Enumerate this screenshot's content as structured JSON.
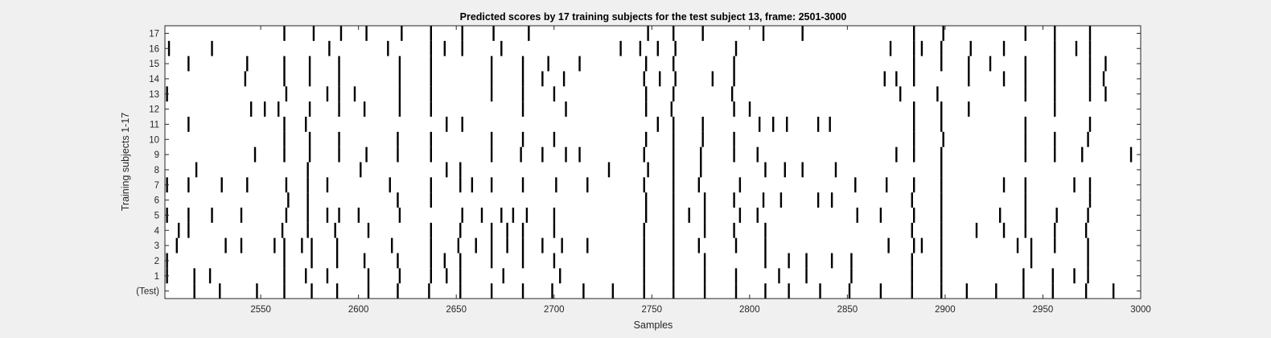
{
  "chart_data": {
    "type": "raster",
    "title": "Predicted scores by 17 training subjects for the test subject 13, frame: 2501-3000",
    "xlabel": "Samples",
    "ylabel": "Training subjects 1-17",
    "xlim": [
      2501,
      3000
    ],
    "xticks": [
      2550,
      2600,
      2650,
      2700,
      2750,
      2800,
      2850,
      2900,
      2950,
      3000
    ],
    "row_labels": [
      "(Test)",
      "1",
      "2",
      "3",
      "4",
      "5",
      "6",
      "7",
      "8",
      "9",
      "10",
      "11",
      "12",
      "13",
      "14",
      "15",
      "16",
      "17"
    ],
    "grid": false,
    "colors": {
      "background": "#f0f0f0",
      "plot_area": "#ffffff",
      "event": "#000000"
    },
    "rows": [
      {
        "label": "(Test)",
        "events": [
          2516,
          2529,
          2548,
          2562,
          2576,
          2589,
          2605,
          2620,
          2636,
          2652,
          2668,
          2684,
          2699,
          2715,
          2730,
          2746,
          2761,
          2777,
          2793,
          2808,
          2820,
          2836,
          2851,
          2867,
          2883,
          2898,
          2911,
          2926,
          2940,
          2955,
          2972,
          2986
        ]
      },
      {
        "label": "1",
        "events": [
          2502,
          2516,
          2524,
          2562,
          2573,
          2584,
          2605,
          2621,
          2637,
          2645,
          2652,
          2674,
          2703,
          2746,
          2761,
          2777,
          2793,
          2815,
          2829,
          2852,
          2883,
          2898,
          2940,
          2955,
          2966,
          2973
        ]
      },
      {
        "label": "2",
        "events": [
          2502,
          2562,
          2576,
          2589,
          2603,
          2620,
          2637,
          2644,
          2652,
          2668,
          2684,
          2700,
          2746,
          2761,
          2777,
          2808,
          2820,
          2829,
          2842,
          2852,
          2883,
          2898,
          2944,
          2973
        ]
      },
      {
        "label": "3",
        "events": [
          2507,
          2532,
          2540,
          2557,
          2562,
          2571,
          2576,
          2589,
          2617,
          2637,
          2651,
          2660,
          2668,
          2676,
          2684,
          2694,
          2704,
          2717,
          2746,
          2761,
          2774,
          2793,
          2808,
          2871,
          2884,
          2888,
          2898,
          2937,
          2944,
          2956,
          2973
        ]
      },
      {
        "label": "4",
        "events": [
          2508,
          2513,
          2561,
          2574,
          2588,
          2605,
          2637,
          2652,
          2668,
          2676,
          2684,
          2700,
          2746,
          2761,
          2777,
          2792,
          2808,
          2883,
          2898,
          2916,
          2930,
          2941,
          2956,
          2972
        ]
      },
      {
        "label": "5",
        "events": [
          2502,
          2513,
          2525,
          2540,
          2563,
          2574,
          2584,
          2590,
          2600,
          2621,
          2653,
          2663,
          2673,
          2679,
          2686,
          2700,
          2747,
          2761,
          2769,
          2777,
          2795,
          2804,
          2855,
          2867,
          2884,
          2898,
          2928,
          2941,
          2957,
          2973
        ]
      },
      {
        "label": "6",
        "events": [
          2564,
          2574,
          2620,
          2637,
          2747,
          2761,
          2777,
          2792,
          2807,
          2816,
          2835,
          2842,
          2883,
          2898,
          2941,
          2974
        ]
      },
      {
        "label": "7",
        "events": [
          2502,
          2513,
          2530,
          2543,
          2563,
          2574,
          2584,
          2616,
          2637,
          2652,
          2658,
          2668,
          2684,
          2701,
          2717,
          2746,
          2761,
          2774,
          2795,
          2854,
          2870,
          2884,
          2898,
          2930,
          2941,
          2966,
          2974
        ]
      },
      {
        "label": "8",
        "events": [
          2517,
          2574,
          2601,
          2645,
          2652,
          2728,
          2748,
          2761,
          2775,
          2808,
          2818,
          2827,
          2844,
          2898
        ]
      },
      {
        "label": "9",
        "events": [
          2547,
          2562,
          2575,
          2590,
          2604,
          2620,
          2637,
          2668,
          2683,
          2694,
          2706,
          2713,
          2746,
          2761,
          2775,
          2792,
          2804,
          2875,
          2884,
          2898,
          2941,
          2956,
          2970,
          2995
        ]
      },
      {
        "label": "10",
        "events": [
          2562,
          2575,
          2590,
          2620,
          2637,
          2668,
          2684,
          2700,
          2747,
          2761,
          2776,
          2792,
          2884,
          2899,
          2941,
          2956,
          2973
        ]
      },
      {
        "label": "11",
        "events": [
          2513,
          2562,
          2573,
          2645,
          2653,
          2753,
          2761,
          2776,
          2805,
          2812,
          2819,
          2835,
          2841,
          2884,
          2898,
          2941,
          2974
        ]
      },
      {
        "label": "12",
        "events": [
          2545,
          2552,
          2559,
          2575,
          2590,
          2603,
          2621,
          2637,
          2684,
          2706,
          2747,
          2760,
          2792,
          2800,
          2884,
          2898,
          2912,
          2956
        ]
      },
      {
        "label": "13",
        "events": [
          2502,
          2563,
          2584,
          2590,
          2598,
          2621,
          2637,
          2668,
          2684,
          2700,
          2747,
          2761,
          2791,
          2877,
          2896,
          2941,
          2956,
          2974,
          2982
        ]
      },
      {
        "label": "14",
        "events": [
          2542,
          2562,
          2575,
          2590,
          2621,
          2637,
          2668,
          2684,
          2694,
          2705,
          2746,
          2754,
          2762,
          2781,
          2792,
          2869,
          2875,
          2884,
          2912,
          2930,
          2941,
          2956,
          2974,
          2981
        ]
      },
      {
        "label": "15",
        "events": [
          2513,
          2543,
          2562,
          2575,
          2590,
          2621,
          2637,
          2668,
          2684,
          2697,
          2713,
          2747,
          2761,
          2792,
          2884,
          2898,
          2912,
          2923,
          2941,
          2956,
          2974,
          2982
        ]
      },
      {
        "label": "16",
        "events": [
          2503,
          2525,
          2585,
          2615,
          2637,
          2644,
          2653,
          2673,
          2734,
          2744,
          2753,
          2762,
          2793,
          2872,
          2884,
          2888,
          2898,
          2913,
          2930,
          2956,
          2967,
          2974
        ]
      },
      {
        "label": "17",
        "events": [
          2562,
          2577,
          2591,
          2604,
          2622,
          2637,
          2653,
          2669,
          2687,
          2748,
          2761,
          2776,
          2807,
          2827,
          2884,
          2899,
          2941,
          2956,
          2974
        ]
      }
    ]
  }
}
